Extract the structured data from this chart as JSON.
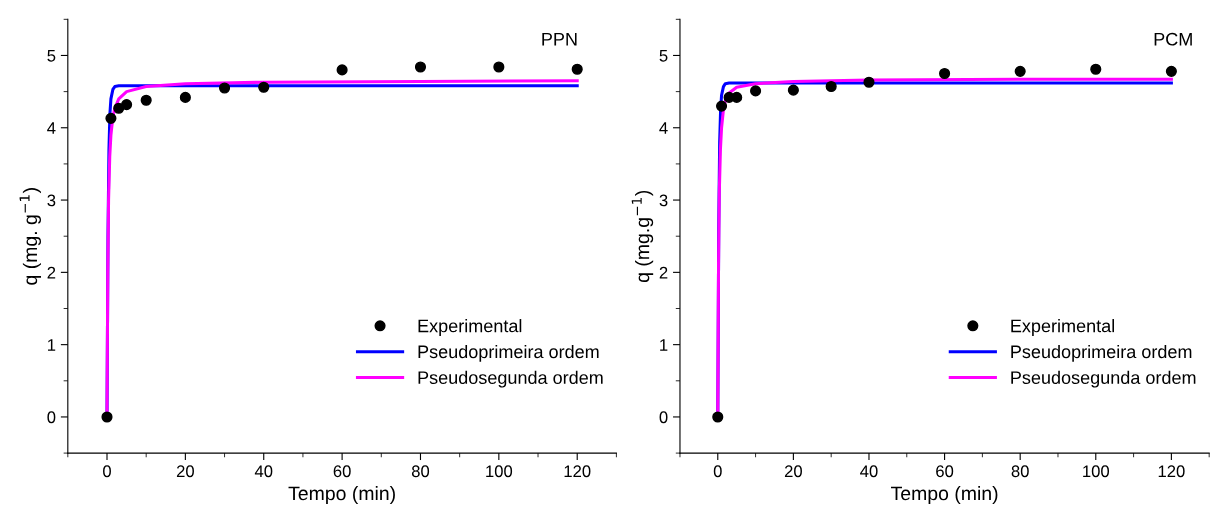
{
  "chart_data": [
    {
      "type": "scatter",
      "annotations": [
        "PPN"
      ],
      "xlabel": "Tempo (min)",
      "ylabel": "q (mg. g$^{−1}$)",
      "xlim": [
        -10,
        130
      ],
      "ylim": [
        -0.5,
        5.5
      ],
      "xticks": [
        0,
        20,
        40,
        60,
        80,
        100,
        120
      ],
      "yticks": [
        0,
        1,
        2,
        3,
        4,
        5
      ],
      "legend": "right",
      "grid": false,
      "series": [
        {
          "name": "Experimental",
          "marker": "circle",
          "color": "#000000",
          "x": [
            0,
            1,
            3,
            5,
            10,
            20,
            30,
            40,
            60,
            80,
            100,
            120
          ],
          "values": [
            0,
            4.13,
            4.27,
            4.32,
            4.38,
            4.42,
            4.55,
            4.56,
            4.8,
            4.84,
            4.84,
            4.81
          ]
        },
        {
          "name": "Pseudoprimeira ordem",
          "type": "line",
          "color": "#0000ff",
          "x": [
            0,
            0.25,
            0.5,
            0.75,
            1,
            1.5,
            2,
            3,
            120
          ],
          "values": [
            0,
            2.5,
            3.7,
            4.2,
            4.4,
            4.53,
            4.57,
            4.58,
            4.58
          ]
        },
        {
          "name": "Pseudosegunda ordem",
          "type": "line",
          "color": "#ff00ff",
          "x": [
            0,
            0.2,
            0.4,
            0.7,
            1,
            1.5,
            2,
            3,
            5,
            10,
            20,
            40,
            80,
            120
          ],
          "values": [
            0,
            2.0,
            3.0,
            3.6,
            3.9,
            4.15,
            4.27,
            4.4,
            4.5,
            4.57,
            4.61,
            4.63,
            4.64,
            4.65
          ]
        }
      ]
    },
    {
      "type": "scatter",
      "annotations": [
        "PCM"
      ],
      "xlabel": "Tempo (min)",
      "ylabel": "q (mg.g$^{−1}$)",
      "xlim": [
        -10,
        130
      ],
      "ylim": [
        -0.5,
        5.5
      ],
      "xticks": [
        0,
        20,
        40,
        60,
        80,
        100,
        120
      ],
      "yticks": [
        0,
        1,
        2,
        3,
        4,
        5
      ],
      "legend": "right",
      "grid": false,
      "series": [
        {
          "name": "Experimental",
          "marker": "circle",
          "color": "#000000",
          "x": [
            0,
            1,
            3,
            5,
            10,
            20,
            30,
            40,
            60,
            80,
            100,
            120
          ],
          "values": [
            0,
            4.3,
            4.42,
            4.42,
            4.51,
            4.52,
            4.57,
            4.63,
            4.75,
            4.78,
            4.81,
            4.78
          ]
        },
        {
          "name": "Pseudoprimeira ordem",
          "type": "line",
          "color": "#0000ff",
          "x": [
            0,
            0.25,
            0.5,
            0.75,
            1,
            1.5,
            2,
            3,
            120
          ],
          "values": [
            0,
            2.6,
            3.8,
            4.25,
            4.45,
            4.57,
            4.61,
            4.62,
            4.62
          ]
        },
        {
          "name": "Pseudosegunda ordem",
          "type": "line",
          "color": "#ff00ff",
          "x": [
            0,
            0.2,
            0.4,
            0.7,
            1,
            1.5,
            2,
            3,
            5,
            10,
            20,
            40,
            80,
            120
          ],
          "values": [
            0,
            2.1,
            3.1,
            3.7,
            4.0,
            4.25,
            4.37,
            4.48,
            4.56,
            4.61,
            4.64,
            4.66,
            4.67,
            4.67
          ]
        }
      ]
    }
  ]
}
